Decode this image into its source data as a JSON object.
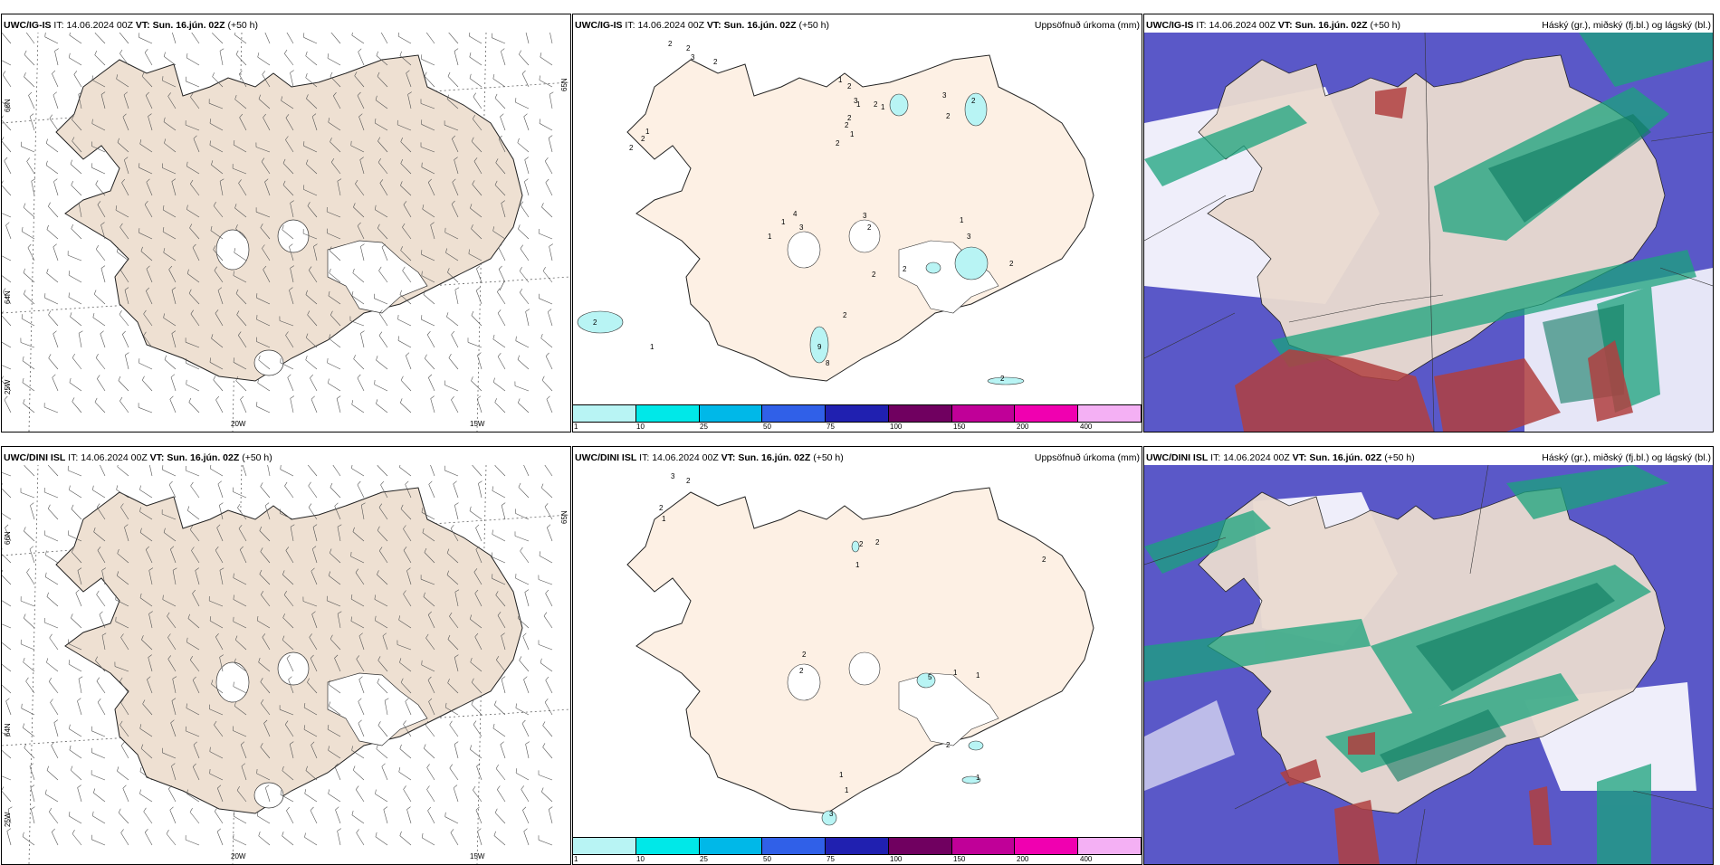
{
  "rows": [
    {
      "model": "UWC/IG-IS",
      "it_label": "IT:",
      "it_value": "14.06.2024 00Z",
      "vt_label": "VT:",
      "vt_value": "Sun. 16.jún. 02Z",
      "lead": "(+50 h)"
    },
    {
      "model": "UWC/DINI ISL",
      "it_label": "IT:",
      "it_value": "14.06.2024 00Z",
      "vt_label": "VT:",
      "vt_value": "Sun. 16.jún. 02Z",
      "lead": "(+50 h)"
    }
  ],
  "precip_title": "Uppsöfnuð úrkoma (mm)",
  "cloud_title": "Háský (gr.), miðský (fj.bl.) og lágský (bl.)",
  "axis_labels": {
    "lat_66": "66N",
    "lat_64": "64N",
    "lat_65": "65N",
    "lon_25": "25W",
    "lon_20": "20W",
    "lon_15": "15W"
  },
  "colorbar": {
    "colors": [
      "#b8f4f4",
      "#00e8e8",
      "#00b8e8",
      "#3060e8",
      "#2020b0",
      "#700060",
      "#c00098",
      "#f000b0",
      "#f4b0f4"
    ],
    "ticks": [
      "1",
      "10",
      "25",
      "50",
      "75",
      "100",
      "150",
      "200",
      "400"
    ]
  },
  "precip_values_top": [
    "2",
    "2",
    "3",
    "2",
    "1",
    "2",
    "2",
    "1",
    "2",
    "3",
    "2",
    "1",
    "2",
    "1",
    "2",
    "2",
    "3",
    "2",
    "1",
    "2",
    "4",
    "3",
    "1",
    "3",
    "2",
    "1",
    "3",
    "1",
    "2",
    "2",
    "2",
    "2",
    "9",
    "8",
    "1",
    "2",
    "2"
  ],
  "precip_values_bottom": [
    "3",
    "2",
    "2",
    "1",
    "2",
    "2",
    "1",
    "2",
    "2",
    "2",
    "5",
    "1",
    "1",
    "2",
    "1",
    "1",
    "3",
    "1"
  ],
  "colors": {
    "land": "#eee0d2",
    "land_precip": "#fdf0e4",
    "sea": "#ffffff",
    "cloud_high": "#1aa37c",
    "cloud_mid": "#5a58c8",
    "cloud_low": "#b04040"
  }
}
